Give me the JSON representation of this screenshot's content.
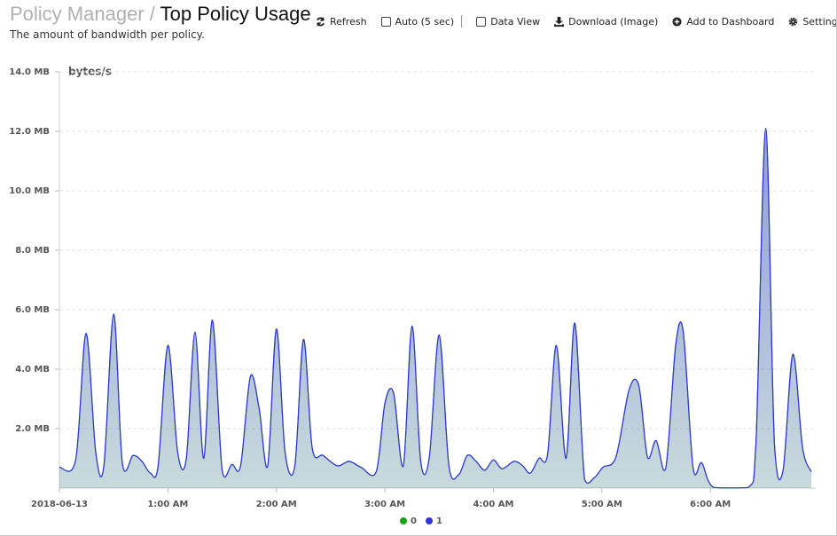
{
  "header": {
    "breadcrumb": "Policy Manager",
    "separator": "/",
    "title": "Top Policy Usage",
    "subtitle": "The amount of bandwidth per policy.",
    "toolbar": [
      "Refresh",
      "Auto (5 sec)",
      "Data View",
      "Download (Image)",
      "Add to Dashboard",
      "Settings"
    ]
  },
  "chart_data": {
    "type": "area",
    "y_label": "bytes/s",
    "x": [
      0,
      0.15,
      0.245,
      0.335,
      0.41,
      0.5,
      0.58,
      0.68,
      0.76,
      0.84,
      0.91,
      1.0,
      1.09,
      1.17,
      1.25,
      1.33,
      1.41,
      1.5,
      1.59,
      1.67,
      1.76,
      1.84,
      1.92,
      2.0,
      2.08,
      2.17,
      2.25,
      2.33,
      2.43,
      2.56,
      2.67,
      2.78,
      2.92,
      3.0,
      3.08,
      3.17,
      3.25,
      3.33,
      3.41,
      3.5,
      3.59,
      3.68,
      3.76,
      3.84,
      3.92,
      4.0,
      4.08,
      4.19,
      4.27,
      4.34,
      4.42,
      4.5,
      4.58,
      4.67,
      4.75,
      4.84,
      4.93,
      5.01,
      5.13,
      5.25,
      5.34,
      5.42,
      5.5,
      5.59,
      5.68,
      5.75,
      5.84,
      5.92,
      6.03,
      6.35,
      6.42,
      6.51,
      6.59,
      6.67,
      6.76,
      6.85,
      6.93
    ],
    "series": [
      {
        "name": "0",
        "color": "#1aa31a",
        "values": [
          0.7,
          0.95,
          5.2,
          1.2,
          0.75,
          5.85,
          0.85,
          1.1,
          0.9,
          0.5,
          0.75,
          4.8,
          1.2,
          1.0,
          5.25,
          1.0,
          5.65,
          0.6,
          0.8,
          0.75,
          3.75,
          2.7,
          0.75,
          5.35,
          1.2,
          0.75,
          5.0,
          1.35,
          1.1,
          0.75,
          0.9,
          0.7,
          0.55,
          2.85,
          3.2,
          0.75,
          5.45,
          0.9,
          1.05,
          5.15,
          0.75,
          0.45,
          1.1,
          0.9,
          0.6,
          0.95,
          0.65,
          0.9,
          0.75,
          0.5,
          1.0,
          1.15,
          4.8,
          1.0,
          5.55,
          0.3,
          0.35,
          0.7,
          1.05,
          3.3,
          3.45,
          1.05,
          1.6,
          0.7,
          4.8,
          5.25,
          0.7,
          0.85,
          0.02,
          0.02,
          1.5,
          12.1,
          1.5,
          0.6,
          4.5,
          1.35,
          0.55
        ]
      },
      {
        "name": "1",
        "color": "#3434d8",
        "values": [
          0.7,
          0.95,
          5.2,
          1.2,
          0.75,
          5.85,
          0.85,
          1.1,
          0.9,
          0.5,
          0.75,
          4.8,
          1.2,
          1.0,
          5.25,
          1.0,
          5.65,
          0.6,
          0.8,
          0.75,
          3.75,
          2.7,
          0.75,
          5.35,
          1.2,
          0.75,
          5.0,
          1.35,
          1.1,
          0.75,
          0.9,
          0.7,
          0.55,
          2.85,
          3.2,
          0.75,
          5.45,
          0.9,
          1.05,
          5.15,
          0.75,
          0.45,
          1.1,
          0.9,
          0.6,
          0.95,
          0.65,
          0.9,
          0.75,
          0.5,
          1.0,
          1.15,
          4.8,
          1.0,
          5.55,
          0.3,
          0.35,
          0.7,
          1.05,
          3.3,
          3.45,
          1.05,
          1.6,
          0.7,
          4.8,
          5.25,
          0.7,
          0.85,
          0.02,
          0.02,
          1.5,
          12.1,
          1.5,
          0.6,
          4.5,
          1.35,
          0.55
        ]
      }
    ],
    "xlim": [
      0,
      6.93
    ],
    "xticks": [
      {
        "value": 0,
        "label": "2018-06-13"
      },
      {
        "value": 1,
        "label": "1:00 AM"
      },
      {
        "value": 2,
        "label": "2:00 AM"
      },
      {
        "value": 3,
        "label": "3:00 AM"
      },
      {
        "value": 4,
        "label": "4:00 AM"
      },
      {
        "value": 5,
        "label": "5:00 AM"
      },
      {
        "value": 6,
        "label": "6:00 AM"
      }
    ],
    "ylim": [
      0,
      14
    ],
    "yticks": [
      {
        "value": 2,
        "label": "2.0 MB"
      },
      {
        "value": 4,
        "label": "4.0 MB"
      },
      {
        "value": 6,
        "label": "6.0 MB"
      },
      {
        "value": 8,
        "label": "8.0 MB"
      },
      {
        "value": 10,
        "label": "10.0 MB"
      },
      {
        "value": 12,
        "label": "12.0 MB"
      },
      {
        "value": 14,
        "label": "14.0 MB"
      }
    ],
    "grid": true
  }
}
